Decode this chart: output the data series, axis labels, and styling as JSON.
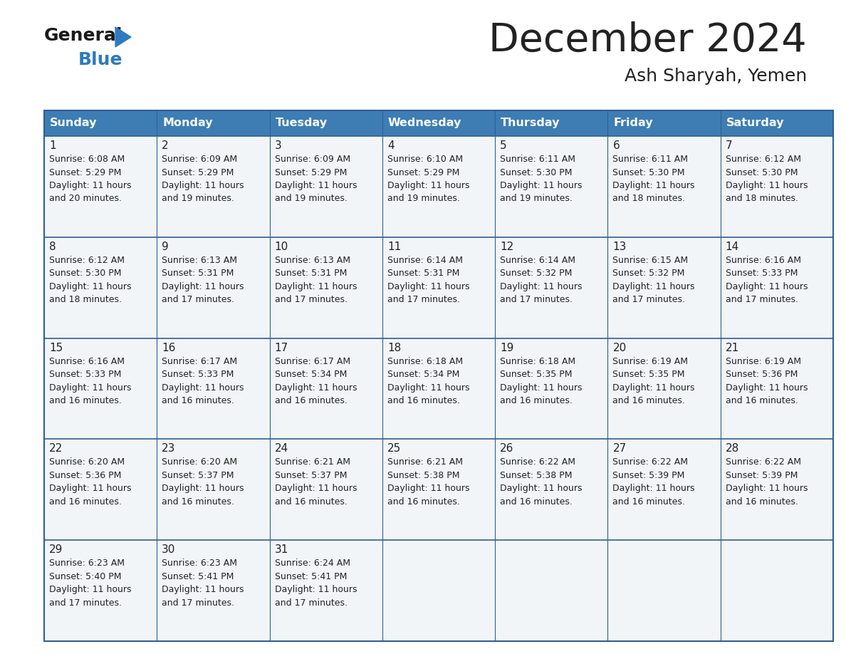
{
  "title": "December 2024",
  "subtitle": "Ash Sharyah, Yemen",
  "header_color": "#3d7db3",
  "header_text_color": "#ffffff",
  "cell_bg_color": "#f2f5f8",
  "border_color": "#2e6094",
  "text_color": "#222222",
  "logo_text_color": "#1a1a1a",
  "logo_blue_color": "#2e7abf",
  "logo_triangle_color": "#2e7abf",
  "days_of_week": [
    "Sunday",
    "Monday",
    "Tuesday",
    "Wednesday",
    "Thursday",
    "Friday",
    "Saturday"
  ],
  "calendar": [
    [
      {
        "day": 1,
        "sunrise": "6:08 AM",
        "sunset": "5:29 PM",
        "daylight_min": "20"
      },
      {
        "day": 2,
        "sunrise": "6:09 AM",
        "sunset": "5:29 PM",
        "daylight_min": "19"
      },
      {
        "day": 3,
        "sunrise": "6:09 AM",
        "sunset": "5:29 PM",
        "daylight_min": "19"
      },
      {
        "day": 4,
        "sunrise": "6:10 AM",
        "sunset": "5:29 PM",
        "daylight_min": "19"
      },
      {
        "day": 5,
        "sunrise": "6:11 AM",
        "sunset": "5:30 PM",
        "daylight_min": "19"
      },
      {
        "day": 6,
        "sunrise": "6:11 AM",
        "sunset": "5:30 PM",
        "daylight_min": "18"
      },
      {
        "day": 7,
        "sunrise": "6:12 AM",
        "sunset": "5:30 PM",
        "daylight_min": "18"
      }
    ],
    [
      {
        "day": 8,
        "sunrise": "6:12 AM",
        "sunset": "5:30 PM",
        "daylight_min": "18"
      },
      {
        "day": 9,
        "sunrise": "6:13 AM",
        "sunset": "5:31 PM",
        "daylight_min": "17"
      },
      {
        "day": 10,
        "sunrise": "6:13 AM",
        "sunset": "5:31 PM",
        "daylight_min": "17"
      },
      {
        "day": 11,
        "sunrise": "6:14 AM",
        "sunset": "5:31 PM",
        "daylight_min": "17"
      },
      {
        "day": 12,
        "sunrise": "6:14 AM",
        "sunset": "5:32 PM",
        "daylight_min": "17"
      },
      {
        "day": 13,
        "sunrise": "6:15 AM",
        "sunset": "5:32 PM",
        "daylight_min": "17"
      },
      {
        "day": 14,
        "sunrise": "6:16 AM",
        "sunset": "5:33 PM",
        "daylight_min": "17"
      }
    ],
    [
      {
        "day": 15,
        "sunrise": "6:16 AM",
        "sunset": "5:33 PM",
        "daylight_min": "16"
      },
      {
        "day": 16,
        "sunrise": "6:17 AM",
        "sunset": "5:33 PM",
        "daylight_min": "16"
      },
      {
        "day": 17,
        "sunrise": "6:17 AM",
        "sunset": "5:34 PM",
        "daylight_min": "16"
      },
      {
        "day": 18,
        "sunrise": "6:18 AM",
        "sunset": "5:34 PM",
        "daylight_min": "16"
      },
      {
        "day": 19,
        "sunrise": "6:18 AM",
        "sunset": "5:35 PM",
        "daylight_min": "16"
      },
      {
        "day": 20,
        "sunrise": "6:19 AM",
        "sunset": "5:35 PM",
        "daylight_min": "16"
      },
      {
        "day": 21,
        "sunrise": "6:19 AM",
        "sunset": "5:36 PM",
        "daylight_min": "16"
      }
    ],
    [
      {
        "day": 22,
        "sunrise": "6:20 AM",
        "sunset": "5:36 PM",
        "daylight_min": "16"
      },
      {
        "day": 23,
        "sunrise": "6:20 AM",
        "sunset": "5:37 PM",
        "daylight_min": "16"
      },
      {
        "day": 24,
        "sunrise": "6:21 AM",
        "sunset": "5:37 PM",
        "daylight_min": "16"
      },
      {
        "day": 25,
        "sunrise": "6:21 AM",
        "sunset": "5:38 PM",
        "daylight_min": "16"
      },
      {
        "day": 26,
        "sunrise": "6:22 AM",
        "sunset": "5:38 PM",
        "daylight_min": "16"
      },
      {
        "day": 27,
        "sunrise": "6:22 AM",
        "sunset": "5:39 PM",
        "daylight_min": "16"
      },
      {
        "day": 28,
        "sunrise": "6:22 AM",
        "sunset": "5:39 PM",
        "daylight_min": "16"
      }
    ],
    [
      {
        "day": 29,
        "sunrise": "6:23 AM",
        "sunset": "5:40 PM",
        "daylight_min": "17"
      },
      {
        "day": 30,
        "sunrise": "6:23 AM",
        "sunset": "5:41 PM",
        "daylight_min": "17"
      },
      {
        "day": 31,
        "sunrise": "6:24 AM",
        "sunset": "5:41 PM",
        "daylight_min": "17"
      },
      null,
      null,
      null,
      null
    ]
  ]
}
